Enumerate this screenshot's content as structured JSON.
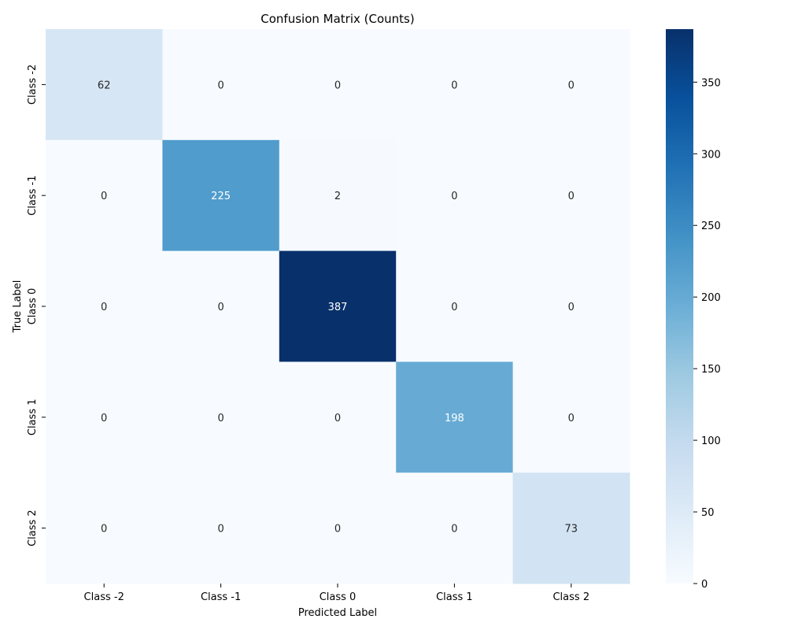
{
  "chart_data": {
    "type": "heatmap",
    "title": "Confusion Matrix (Counts)",
    "xlabel": "Predicted Label",
    "ylabel": "True Label",
    "x_categories": [
      "Class -2",
      "Class -1",
      "Class 0",
      "Class 1",
      "Class 2"
    ],
    "y_categories": [
      "Class -2",
      "Class -1",
      "Class 0",
      "Class 1",
      "Class 2"
    ],
    "values": [
      [
        62,
        0,
        0,
        0,
        0
      ],
      [
        0,
        225,
        2,
        0,
        0
      ],
      [
        0,
        0,
        387,
        0,
        0
      ],
      [
        0,
        0,
        0,
        198,
        0
      ],
      [
        0,
        0,
        0,
        0,
        73
      ]
    ],
    "colormap": "Blues",
    "colorbar": {
      "range": [
        0,
        387
      ],
      "ticks": [
        0,
        50,
        100,
        150,
        200,
        250,
        300,
        350
      ]
    },
    "annotations": true
  }
}
